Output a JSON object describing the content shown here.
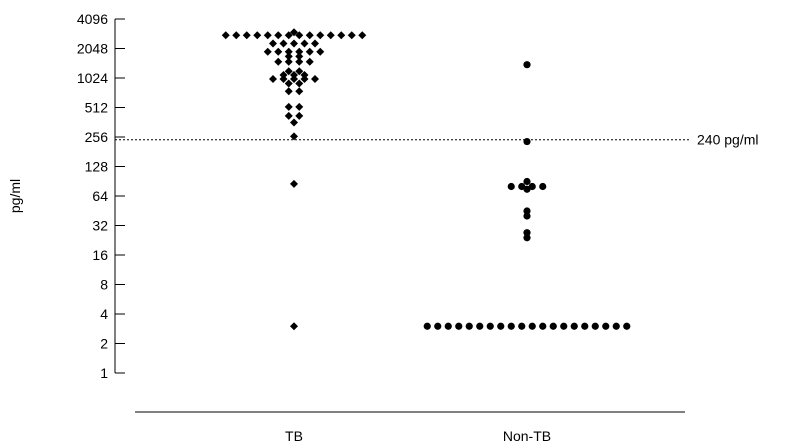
{
  "chart_data": {
    "type": "scatter",
    "title": "",
    "xlabel": "",
    "ylabel": "pg/ml",
    "y_scale": "log2",
    "ylim": [
      1,
      4096
    ],
    "y_ticks": [
      1,
      2,
      4,
      8,
      16,
      32,
      64,
      128,
      256,
      512,
      1024,
      2048,
      4096
    ],
    "y_tick_labels": [
      "1",
      "2",
      "4",
      "8",
      "16",
      "32",
      "64",
      "128",
      "256",
      "512",
      "1024",
      "2048",
      "4096"
    ],
    "categories": [
      "TB",
      "Non-TB"
    ],
    "grid": false,
    "reference_line": {
      "value": 240,
      "label": "240 pg/ml",
      "style": "dotted"
    },
    "series": [
      {
        "category": "TB",
        "marker": "diamond",
        "values": [
          2800,
          2800,
          2800,
          2800,
          2800,
          2800,
          2800,
          2800,
          2800,
          2800,
          2800,
          2800,
          2800,
          2800,
          3000,
          2300,
          2300,
          2300,
          2300,
          2300,
          1900,
          1900,
          1900,
          1900,
          1900,
          1900,
          1700,
          1700,
          1500,
          1500,
          1500,
          1500,
          1200,
          1200,
          1100,
          1100,
          1100,
          1000,
          1000,
          1000,
          1000,
          1000,
          900,
          900,
          750,
          750,
          520,
          520,
          420,
          420,
          360,
          260,
          85,
          3
        ]
      },
      {
        "category": "Non-TB",
        "marker": "circle",
        "values": [
          1400,
          230,
          90,
          80,
          80,
          80,
          80,
          75,
          45,
          40,
          27,
          24,
          3,
          3,
          3,
          3,
          3,
          3,
          3,
          3,
          3,
          3,
          3,
          3,
          3,
          3,
          3,
          3,
          3,
          3,
          3,
          3
        ]
      }
    ]
  }
}
